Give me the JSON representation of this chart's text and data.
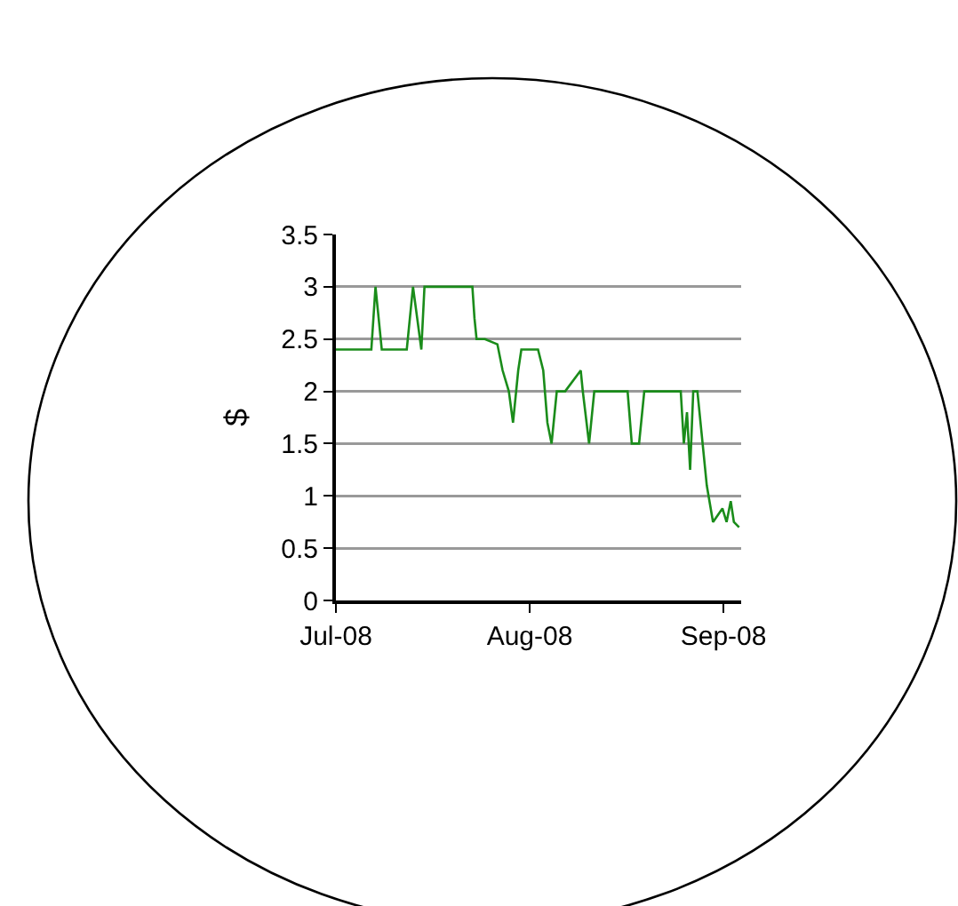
{
  "chart_data": {
    "type": "line",
    "ylabel": "$",
    "x": [
      "2008-07-01",
      "2008-07-06T16:00",
      "2008-07-07T08:00",
      "2008-07-07T16:00",
      "2008-07-08T08:00",
      "2008-07-12T08:00",
      "2008-07-12T16:00",
      "2008-07-13T08:00",
      "2008-07-14T00:00",
      "2008-07-14T16:00",
      "2008-07-15T04:00",
      "2008-07-22T20:00",
      "2008-07-23T04:00",
      "2008-07-23T12:00",
      "2008-07-24T20:00",
      "2008-07-26T20:00",
      "2008-07-27T16:00",
      "2008-07-28T16:00",
      "2008-07-29T08:00",
      "2008-07-30T04:00",
      "2008-07-30T16:00",
      "2008-08-02T08:00",
      "2008-08-03T04:00",
      "2008-08-03T20:00",
      "2008-08-04T12:00",
      "2008-08-05T08:00",
      "2008-08-06T16:00",
      "2008-08-09T04:00",
      "2008-08-09T12:00",
      "2008-08-10T12:00",
      "2008-08-11T08:00",
      "2008-08-16T16:00",
      "2008-08-17T08:00",
      "2008-08-18T12:00",
      "2008-08-19T08:00",
      "2008-08-25T04:00",
      "2008-08-25T16:00",
      "2008-08-26T04:00",
      "2008-08-26T16:00",
      "2008-08-27T04:00",
      "2008-08-27T20:00",
      "2008-08-28T12:00",
      "2008-08-29T08:00",
      "2008-08-30T08:00",
      "2008-08-31T20:00",
      "2008-09-01T12:00",
      "2008-09-02T04:00",
      "2008-09-02T16:00",
      "2008-09-03T12:00"
    ],
    "series": [
      {
        "color": "#1a8c1a",
        "values": [
          2.4,
          2.4,
          3.0,
          2.8,
          2.4,
          2.4,
          2.6,
          3.0,
          2.7,
          2.4,
          3.0,
          3.0,
          2.7,
          2.5,
          2.5,
          2.45,
          2.2,
          2.0,
          1.7,
          2.2,
          2.4,
          2.4,
          2.2,
          1.7,
          1.5,
          2.0,
          2.0,
          2.2,
          2.0,
          1.5,
          2.0,
          2.0,
          1.5,
          1.5,
          2.0,
          2.0,
          1.5,
          1.8,
          1.25,
          2.0,
          2.0,
          1.6,
          1.1,
          0.75,
          0.88,
          0.75,
          0.95,
          0.75,
          0.7
        ]
      }
    ],
    "xlim": [
      "2008-07-01",
      "2008-09-03T20:00"
    ],
    "xticks": [
      {
        "value": "2008-07-01",
        "label": "Jul-08"
      },
      {
        "value": "2008-08-01",
        "label": "Aug-08"
      },
      {
        "value": "2008-09-01",
        "label": "Sep-08"
      }
    ],
    "ylim": [
      0,
      3.5
    ],
    "yticks": [
      0,
      {
        "value": 0.5,
        "label": "0.5"
      },
      1,
      {
        "value": 1.5,
        "label": "1.5"
      },
      2,
      {
        "value": 2.5,
        "label": "2.5"
      },
      3,
      {
        "value": 3.5,
        "label": "3.5"
      }
    ],
    "grid": "y",
    "marker": "none",
    "line_style": "solid"
  }
}
